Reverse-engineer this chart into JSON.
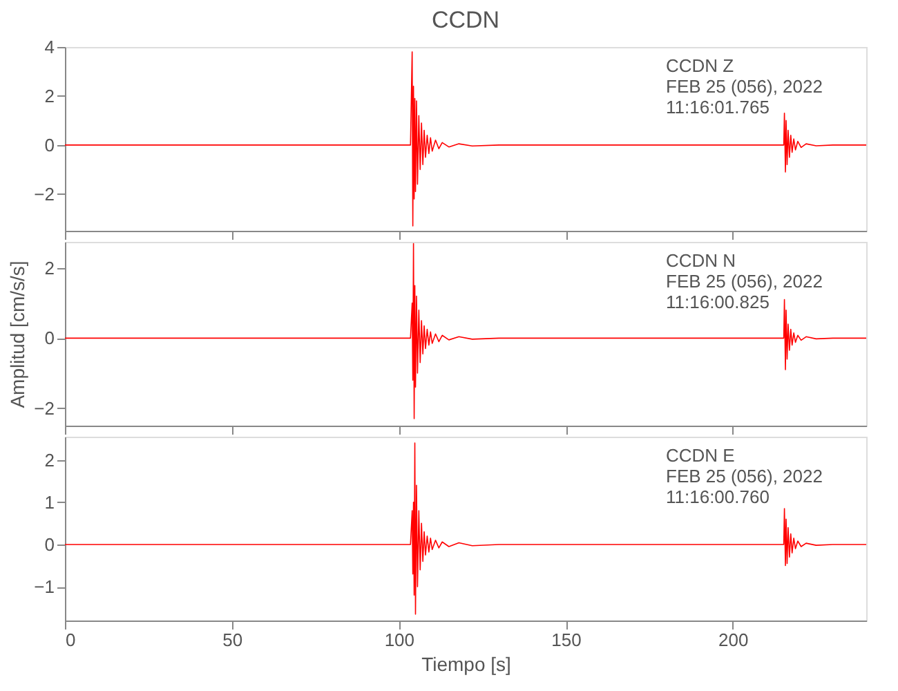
{
  "chart_data": [
    {
      "type": "line",
      "title": "CCDN",
      "annotations": [
        "CCDN   Z",
        "FEB 25 (056), 2022",
        "11:16:01.765"
      ],
      "xlim": [
        0,
        240
      ],
      "xticks": [
        0,
        50,
        100,
        150,
        200
      ],
      "ylim": [
        -3.5,
        4
      ],
      "yticks": [
        -2,
        0,
        2,
        4
      ],
      "tick_labels": "y",
      "grid": false,
      "marker": "none",
      "line_style": "solid",
      "x": [
        0,
        20,
        40,
        60,
        80,
        100,
        103.5,
        104.0,
        104.2,
        104.4,
        104.6,
        104.8,
        105.0,
        105.3,
        105.6,
        106.0,
        106.4,
        106.8,
        107.2,
        107.6,
        108,
        108.5,
        109,
        109.5,
        110,
        111,
        112,
        113,
        115,
        118,
        122,
        130,
        150,
        170,
        190,
        215.3,
        215.5,
        215.8,
        216.0,
        216.3,
        216.6,
        217.0,
        217.4,
        217.8,
        218.3,
        218.8,
        219.5,
        220.5,
        222,
        225,
        230,
        240
      ],
      "series": [
        {
          "color": "#ff0000",
          "values": [
            0,
            0,
            0,
            0,
            0,
            0,
            0,
            3.8,
            -3.3,
            2.4,
            -2.2,
            1.9,
            -1.9,
            1.8,
            -1.6,
            1.2,
            -1.0,
            0.9,
            -0.8,
            0.6,
            -0.5,
            0.4,
            -0.35,
            0.3,
            -0.25,
            0.2,
            -0.15,
            0.1,
            -0.08,
            0.05,
            -0.04,
            0,
            0,
            0,
            0,
            0,
            1.3,
            -1.1,
            1.0,
            -0.8,
            0.6,
            -0.5,
            0.4,
            -0.3,
            0.25,
            -0.2,
            0.15,
            -0.1,
            0.05,
            -0.03,
            0,
            0
          ]
        }
      ]
    },
    {
      "type": "line",
      "ylabel": "Amplitud [cm/s/s]",
      "annotations": [
        "CCDN   N",
        "FEB 25 (056), 2022",
        "11:16:00.825"
      ],
      "xlim": [
        0,
        240
      ],
      "xticks": [
        0,
        50,
        100,
        150,
        200
      ],
      "ylim": [
        -2.5,
        2.75
      ],
      "yticks": [
        -2,
        0,
        2
      ],
      "tick_labels": "y",
      "grid": false,
      "marker": "none",
      "line_style": "solid",
      "x": [
        0,
        20,
        40,
        60,
        80,
        100,
        103.5,
        104.0,
        104.2,
        104.4,
        104.6,
        104.8,
        105.0,
        105.3,
        105.6,
        106.0,
        106.4,
        106.8,
        107.2,
        107.6,
        108,
        108.5,
        109,
        109.5,
        110,
        111,
        112,
        113,
        115,
        118,
        122,
        130,
        150,
        170,
        190,
        215.3,
        215.5,
        215.8,
        216.0,
        216.3,
        216.6,
        217.0,
        217.4,
        217.8,
        218.3,
        218.8,
        219.5,
        220.5,
        222,
        225,
        230,
        240
      ],
      "series": [
        {
          "color": "#ff0000",
          "values": [
            0,
            0,
            0,
            0,
            0,
            0,
            0,
            1.0,
            -1.2,
            2.7,
            -2.3,
            1.5,
            -1.4,
            1.2,
            -1.0,
            0.8,
            -0.7,
            0.5,
            -0.45,
            0.35,
            -0.3,
            0.25,
            -0.2,
            0.18,
            -0.15,
            0.12,
            -0.1,
            0.08,
            -0.05,
            0.04,
            -0.03,
            0,
            0,
            0,
            0,
            0,
            1.1,
            -0.9,
            0.8,
            -0.6,
            0.4,
            -0.35,
            0.25,
            -0.2,
            0.15,
            -0.12,
            0.08,
            -0.06,
            0.04,
            -0.02,
            0,
            0
          ]
        }
      ]
    },
    {
      "type": "line",
      "xlabel": "Tiempo [s]",
      "annotations": [
        "CCDN   E",
        "FEB 25 (056), 2022",
        "11:16:00.760"
      ],
      "xlim": [
        0,
        240
      ],
      "xticks": [
        0,
        50,
        100,
        150,
        200
      ],
      "ylim": [
        -1.8,
        2.55
      ],
      "yticks": [
        -1,
        0,
        1,
        2
      ],
      "grid": false,
      "marker": "none",
      "line_style": "solid",
      "x": [
        0,
        20,
        40,
        60,
        80,
        100,
        103.5,
        104.0,
        104.2,
        104.4,
        104.6,
        104.8,
        105.0,
        105.3,
        105.6,
        106.0,
        106.4,
        106.8,
        107.2,
        107.6,
        108,
        108.5,
        109,
        109.5,
        110,
        111,
        112,
        113,
        115,
        118,
        122,
        130,
        150,
        170,
        190,
        215.3,
        215.5,
        215.8,
        216.0,
        216.3,
        216.6,
        217.0,
        217.4,
        217.8,
        218.3,
        218.8,
        219.5,
        220.5,
        222,
        225,
        230,
        240
      ],
      "series": [
        {
          "color": "#ff0000",
          "values": [
            0,
            0,
            0,
            0,
            0,
            0,
            0,
            0.8,
            -0.7,
            1.0,
            -1.2,
            2.4,
            -1.65,
            1.4,
            -1.0,
            0.8,
            -0.6,
            0.5,
            -0.4,
            0.3,
            -0.25,
            0.2,
            -0.18,
            0.15,
            -0.12,
            0.1,
            -0.08,
            0.06,
            -0.05,
            0.04,
            -0.03,
            0,
            0,
            0,
            0,
            0,
            0.85,
            -0.5,
            0.6,
            -0.45,
            0.4,
            -0.3,
            0.25,
            -0.2,
            0.15,
            -0.1,
            0.08,
            -0.05,
            0.03,
            -0.02,
            0,
            0
          ]
        }
      ]
    }
  ]
}
